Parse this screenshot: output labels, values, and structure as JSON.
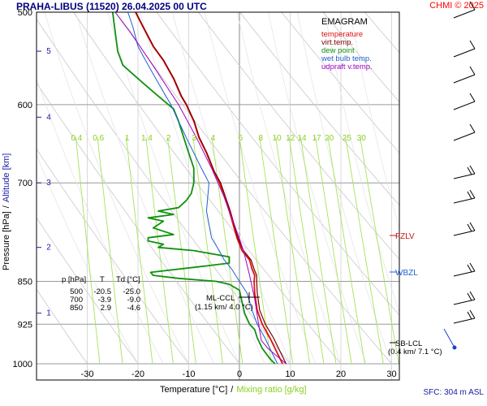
{
  "header": {
    "title": "PRAHA-LIBUS (11520)    26.04.2025 00 UTC",
    "copyright": "CHMI © 2025",
    "surface": "SFC: 304 m ASL"
  },
  "legend": {
    "title": "EMAGRAM",
    "items": [
      {
        "label": "temperature",
        "color": "#e01010"
      },
      {
        "label": "virt.temp.",
        "color": "#7a0000"
      },
      {
        "label": "dew point",
        "color": "#109010"
      },
      {
        "label": "wet bulb temp.",
        "color": "#1f5fd0"
      },
      {
        "label": "udpraft v.temp.",
        "color": "#a000c0"
      }
    ]
  },
  "table": {
    "headers": [
      "p [hPa]",
      "T",
      "Td [°C]"
    ],
    "rows": [
      [
        "500",
        "-20.5",
        "-25.0"
      ],
      [
        "700",
        "-3.9",
        "-9.0"
      ],
      [
        "850",
        "2.9",
        "-4.6"
      ]
    ]
  },
  "levels": [
    {
      "label": "FZLV",
      "p": 790,
      "color": "#d01010"
    },
    {
      "label": "WBZL",
      "p": 843,
      "color": "#1f5fd0"
    },
    {
      "label": "SB-LCL",
      "sub": "(0.4 km/ 7.1 °C)",
      "p": 955,
      "color": "#000000"
    }
  ],
  "ml_ccl": {
    "label": "ML-CCL",
    "sub": "(1.15 km/ 4.0 °C)",
    "p": 880,
    "t": 4
  },
  "chart_data": {
    "type": "line",
    "xlabel": "Temperature [°C]",
    "xlabel_sep": "/",
    "xlabel_mr": "Mixing ratio [g/kg]",
    "ylabel": "Pressure [hPa]",
    "ylabel_sep": "/",
    "ylabel_alt": "Altitude [km]",
    "x_ticks": [
      -30,
      -20,
      -10,
      0,
      10,
      20,
      30
    ],
    "xlim": [
      -40,
      30
    ],
    "y_ticks": [
      500,
      600,
      700,
      850,
      925,
      1000
    ],
    "y_scale": "log",
    "ylim": [
      1000,
      500
    ],
    "grid": true,
    "alt_ticks": [
      {
        "km": "1",
        "p": 905
      },
      {
        "km": "2",
        "p": 795
      },
      {
        "km": "3",
        "p": 700
      },
      {
        "km": "4",
        "p": 615
      },
      {
        "km": "5",
        "p": 540
      }
    ],
    "mixing_ratio_labels": [
      "0.4",
      "0.6",
      "1",
      "1.4",
      "2",
      "3",
      "4",
      "6",
      "8",
      "10",
      "12",
      "14",
      "17",
      "20",
      "25",
      "30"
    ],
    "mixing_ratio_values": [
      0.4,
      0.6,
      1,
      1.4,
      2,
      3,
      4,
      6,
      8,
      10,
      12,
      14,
      17,
      20,
      25,
      30
    ],
    "series": [
      {
        "name": "temperature",
        "color": "#e01010",
        "points": [
          [
            8.5,
            1000
          ],
          [
            7.5,
            980
          ],
          [
            6,
            950
          ],
          [
            4.5,
            925
          ],
          [
            3.5,
            900
          ],
          [
            3,
            870
          ],
          [
            2.9,
            850
          ],
          [
            3,
            840
          ],
          [
            2.5,
            830
          ],
          [
            2,
            815
          ],
          [
            0.5,
            800
          ],
          [
            -0.5,
            780
          ],
          [
            -2,
            740
          ],
          [
            -3.9,
            700
          ],
          [
            -5,
            685
          ],
          [
            -6.5,
            660
          ],
          [
            -8,
            640
          ],
          [
            -9,
            620
          ],
          [
            -10.5,
            600
          ],
          [
            -11.5,
            590
          ],
          [
            -13,
            570
          ],
          [
            -15,
            550
          ],
          [
            -17,
            535
          ],
          [
            -19,
            515
          ],
          [
            -20.5,
            500
          ]
        ]
      },
      {
        "name": "virt.temp.",
        "color": "#7a0000",
        "points": [
          [
            9.2,
            1000
          ],
          [
            8.2,
            980
          ],
          [
            6.7,
            950
          ],
          [
            5.1,
            925
          ],
          [
            4,
            900
          ],
          [
            3.5,
            870
          ],
          [
            3.4,
            850
          ],
          [
            3.4,
            840
          ],
          [
            2.9,
            830
          ],
          [
            2.3,
            815
          ],
          [
            0.8,
            800
          ],
          [
            -0.3,
            780
          ],
          [
            -1.8,
            740
          ],
          [
            -3.7,
            700
          ],
          [
            -4.9,
            685
          ],
          [
            -6.4,
            660
          ],
          [
            -7.9,
            640
          ],
          [
            -8.9,
            620
          ],
          [
            -10.4,
            600
          ],
          [
            -11.4,
            590
          ],
          [
            -12.9,
            570
          ],
          [
            -14.9,
            550
          ],
          [
            -16.9,
            535
          ],
          [
            -18.9,
            515
          ],
          [
            -20.4,
            500
          ]
        ]
      },
      {
        "name": "dew point",
        "color": "#109010",
        "points": [
          [
            7,
            1000
          ],
          [
            6,
            990
          ],
          [
            4.5,
            970
          ],
          [
            3.5,
            950
          ],
          [
            3,
            935
          ],
          [
            2,
            925
          ],
          [
            1,
            905
          ],
          [
            0.5,
            885
          ],
          [
            0,
            865
          ],
          [
            -2,
            855
          ],
          [
            -4.6,
            850
          ],
          [
            -12,
            845
          ],
          [
            -17,
            840
          ],
          [
            -17.5,
            835
          ],
          [
            -7,
            825
          ],
          [
            -2,
            820
          ],
          [
            -2,
            810
          ],
          [
            -9,
            800
          ],
          [
            -16,
            795
          ],
          [
            -15,
            790
          ],
          [
            -18,
            785
          ],
          [
            -18,
            780
          ],
          [
            -13,
            775
          ],
          [
            -17,
            765
          ],
          [
            -15,
            755
          ],
          [
            -18,
            750
          ],
          [
            -13,
            745
          ],
          [
            -16,
            740
          ],
          [
            -12,
            735
          ],
          [
            -10.5,
            725
          ],
          [
            -9.5,
            715
          ],
          [
            -9,
            700
          ],
          [
            -9,
            680
          ],
          [
            -10,
            660
          ],
          [
            -11,
            640
          ],
          [
            -12,
            620
          ],
          [
            -13,
            605
          ],
          [
            -15,
            595
          ],
          [
            -17,
            585
          ],
          [
            -19,
            575
          ],
          [
            -21,
            565
          ],
          [
            -23,
            555
          ],
          [
            -24,
            540
          ],
          [
            -25,
            500
          ]
        ]
      },
      {
        "name": "wet bulb temp.",
        "color": "#1f5fd0",
        "points": [
          [
            7.5,
            1000
          ],
          [
            6.5,
            980
          ],
          [
            5,
            950
          ],
          [
            3.5,
            925
          ],
          [
            2.5,
            900
          ],
          [
            1.5,
            870
          ],
          [
            0,
            850
          ],
          [
            -1.5,
            830
          ],
          [
            -3,
            815
          ],
          [
            -4,
            800
          ],
          [
            -5.5,
            780
          ],
          [
            -6.5,
            740
          ],
          [
            -6,
            700
          ],
          [
            -7.5,
            680
          ],
          [
            -9,
            660
          ],
          [
            -10.5,
            640
          ],
          [
            -12,
            620
          ],
          [
            -13.5,
            600
          ],
          [
            -15,
            585
          ],
          [
            -17,
            565
          ],
          [
            -18.5,
            550
          ],
          [
            -20,
            535
          ],
          [
            -21,
            515
          ],
          [
            -22,
            500
          ]
        ]
      },
      {
        "name": "udpraft v.temp.",
        "color": "#a000c0",
        "points": [
          [
            9.2,
            1000
          ],
          [
            7.4,
            985
          ],
          [
            5.6,
            970
          ],
          [
            4.3,
            955
          ],
          [
            3.7,
            920
          ],
          [
            3,
            880
          ],
          [
            2,
            840
          ],
          [
            0.8,
            800
          ],
          [
            -1,
            760
          ],
          [
            -3,
            720
          ],
          [
            -5.5,
            680
          ],
          [
            -8.5,
            640
          ],
          [
            -12,
            600
          ],
          [
            -16.5,
            560
          ],
          [
            -21.5,
            520
          ],
          [
            -24.5,
            500
          ]
        ]
      }
    ]
  }
}
